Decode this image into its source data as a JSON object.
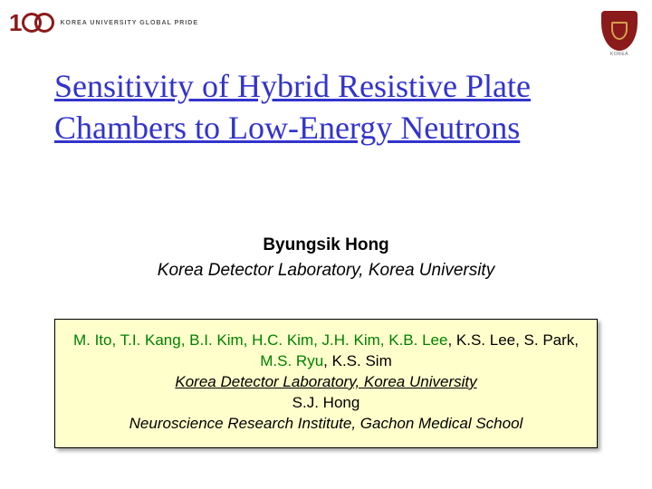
{
  "logo_left": {
    "tagline": "KOREA UNIVERSITY GLOBAL PRIDE"
  },
  "logo_right": {
    "label": "KOREA"
  },
  "title": "Sensitivity of Hybrid  Resistive Plate Chambers to Low-Energy Neutrons",
  "presenter": {
    "name": "Byungsik Hong",
    "affiliation": "Korea Detector Laboratory, Korea University"
  },
  "authors": {
    "line1_green_a": "M. Ito, T.I. Kang, B.I. Kim, H.C. Kim, J.H. Kim, K.B. Lee",
    "line1_black_a": ", K.S. Lee, S. Park,",
    "line2_green": "M.S. Ryu",
    "line2_black": ", K.S. Sim",
    "aff1": "Korea Detector Laboratory, Korea University",
    "line3": "S.J. Hong",
    "aff2": "Neuroscience Research Institute, Gachon Medical School"
  },
  "colors": {
    "title": "#3333cc",
    "crimson": "#8b1a1a",
    "highlight_bg": "#ffffcc",
    "author_green": "#008000"
  }
}
